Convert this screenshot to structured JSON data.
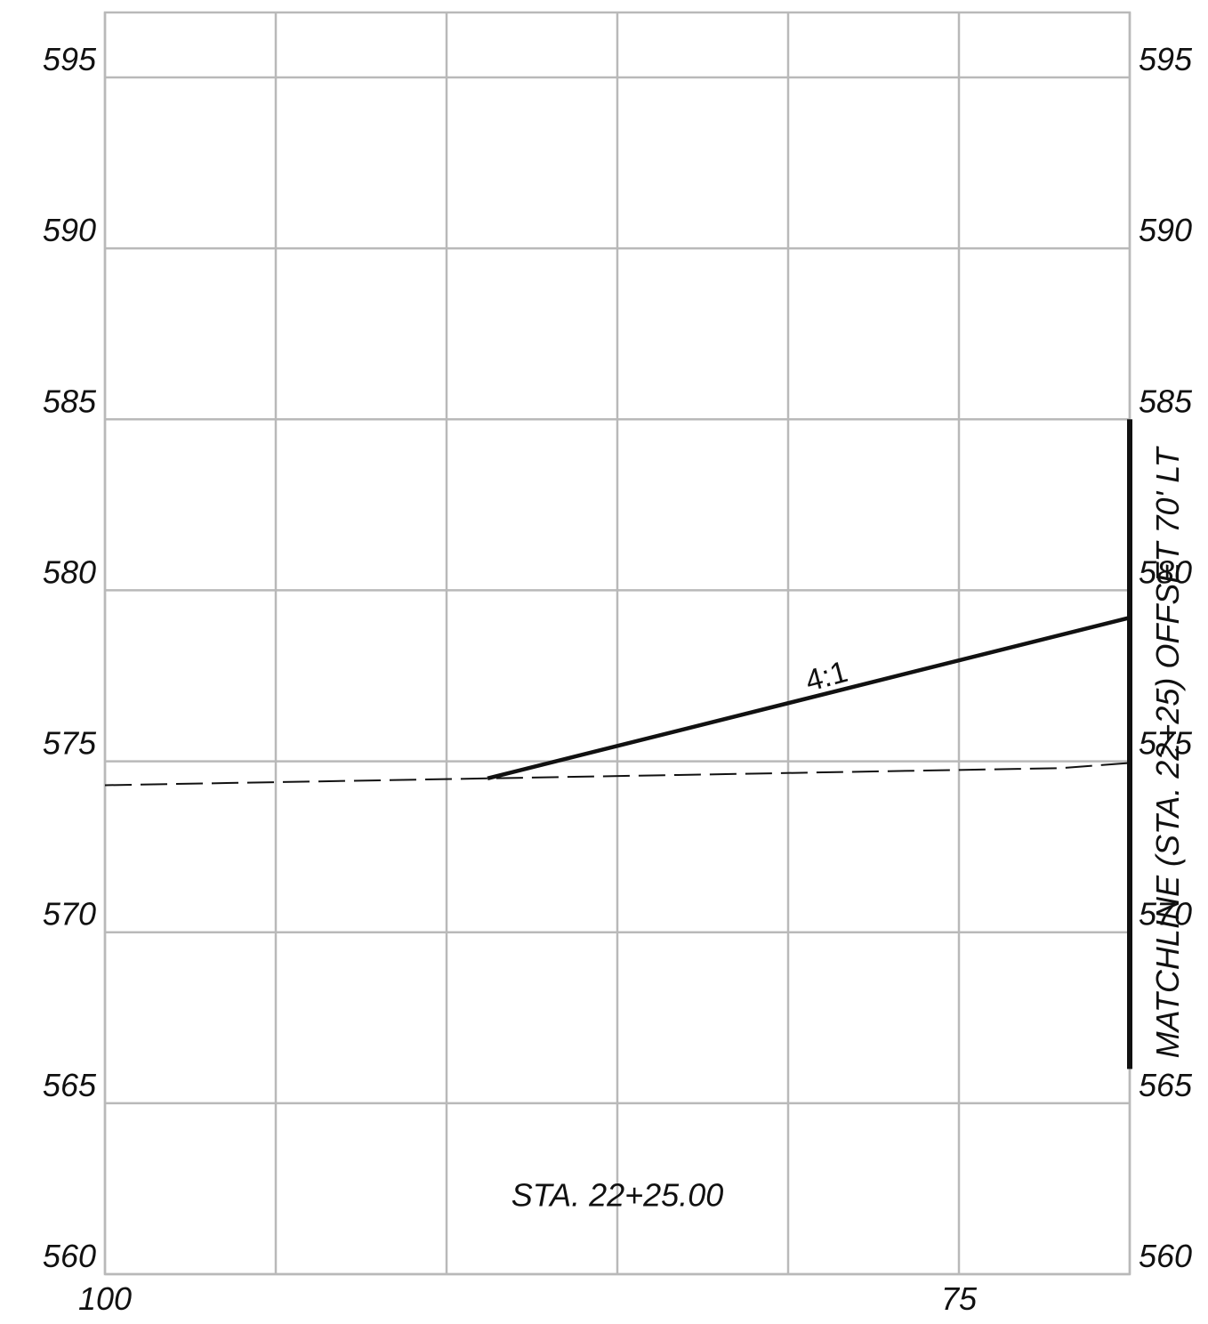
{
  "chart_data": {
    "type": "line",
    "title": "",
    "xlabel": "",
    "ylabel": "",
    "xlim": [
      100,
      70
    ],
    "ylim": [
      560,
      596.9
    ],
    "grid": true,
    "x_ticks": [
      {
        "value": 100,
        "label": "100"
      },
      {
        "value": 75,
        "label": "75"
      }
    ],
    "y_ticks": [
      560,
      565,
      570,
      575,
      580,
      585,
      590,
      595
    ],
    "y_tick_labels": [
      "560",
      "565",
      "570",
      "575",
      "580",
      "585",
      "590",
      "595"
    ],
    "series": [
      {
        "style": "dashed",
        "x": [
          100,
          88.8,
          72,
          70
        ],
        "y": [
          574.3,
          574.5,
          574.8,
          574.95
        ]
      },
      {
        "style": "solid",
        "x": [
          88.8,
          70
        ],
        "y": [
          574.5,
          579.2
        ]
      }
    ],
    "matchline": {
      "x": 70,
      "y_from": 566,
      "y_to": 585
    },
    "annotations": {
      "slope": {
        "text": "4:1",
        "x": 78.8,
        "y": 577.2
      },
      "station": {
        "text": "STA. 22+25.00",
        "x": 85,
        "y": 562.3
      },
      "matchline": {
        "text": "MATCHLINE (STA. 22+25) OFFSET 70' LT"
      }
    }
  }
}
